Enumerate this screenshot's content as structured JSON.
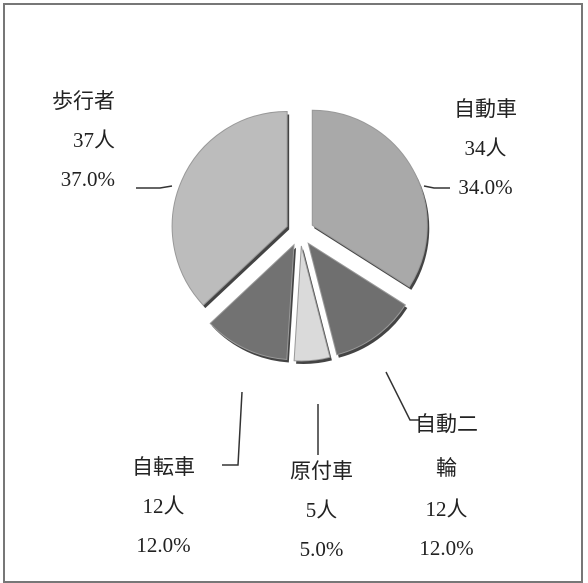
{
  "chart_data": {
    "type": "pie",
    "categories": [
      "自動車",
      "自動二輪",
      "原付車",
      "自転車",
      "歩行者"
    ],
    "values": [
      34,
      12,
      5,
      12,
      37
    ],
    "value_labels": [
      "34人",
      "12人",
      "5人",
      "12人",
      "37人"
    ],
    "percent_labels": [
      "34.0%",
      "12.0%",
      "5.0%",
      "12.0%",
      "37.0%"
    ],
    "colors": [
      "#a9a9a9",
      "#6f6f6f",
      "#dadada",
      "#727272",
      "#bcbcbc"
    ]
  }
}
